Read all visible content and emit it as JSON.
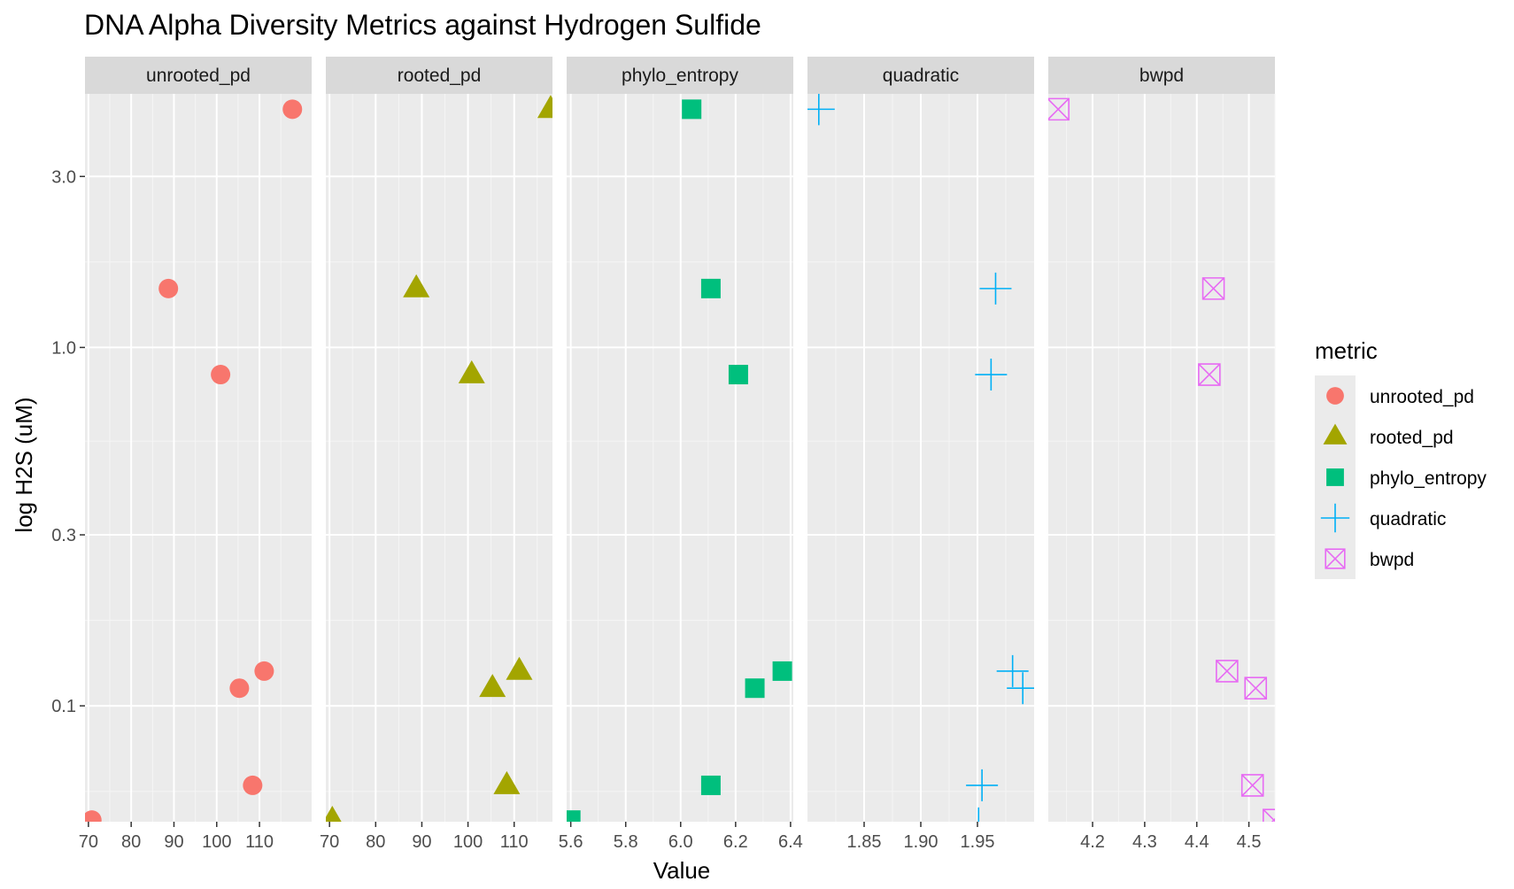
{
  "chart_data": {
    "type": "scatter",
    "title": "DNA Alpha Diversity Metrics against Hydrogen Sulfide",
    "xlabel": "Value",
    "ylabel": "log H2S (uM)",
    "y_scale": "log10",
    "ylim": [
      0.0475,
      5.1
    ],
    "y_ticks": [
      {
        "value": 0.1,
        "label": "0.1"
      },
      {
        "value": 0.3,
        "label": "0.3"
      },
      {
        "value": 1.0,
        "label": "1.0"
      },
      {
        "value": 3.0,
        "label": "3.0"
      }
    ],
    "grid": true,
    "facets": "columns, free x scales",
    "legend": {
      "title": "metric",
      "placement": "right",
      "entries": [
        {
          "label": "unrooted_pd",
          "shape": "circle",
          "color": "#F8766D"
        },
        {
          "label": "rooted_pd",
          "shape": "triangle",
          "color": "#A3A500"
        },
        {
          "label": "phylo_entropy",
          "shape": "square",
          "color": "#00BF7D"
        },
        {
          "label": "quadratic",
          "shape": "plus",
          "color": "#00B0F6"
        },
        {
          "label": "bwpd",
          "shape": "boxed-x",
          "color": "#E76BF3"
        }
      ]
    },
    "panels": [
      {
        "name": "unrooted_pd",
        "shape": "circle",
        "color": "#F8766D",
        "xlim": [
          69.2,
          122.2
        ],
        "x_ticks": [
          70,
          80,
          90,
          100,
          110
        ],
        "x_tick_labels": [
          "70",
          "80",
          "90",
          "100",
          "110"
        ],
        "points": [
          {
            "x": 70.8,
            "y": 0.048
          },
          {
            "x": 88.7,
            "y": 1.46
          },
          {
            "x": 100.9,
            "y": 0.84
          },
          {
            "x": 105.3,
            "y": 0.112
          },
          {
            "x": 108.4,
            "y": 0.06
          },
          {
            "x": 111.1,
            "y": 0.125
          },
          {
            "x": 117.7,
            "y": 4.62
          }
        ]
      },
      {
        "name": "rooted_pd",
        "shape": "triangle",
        "color": "#A3A500",
        "xlim": [
          69.2,
          118.3
        ],
        "x_ticks": [
          70,
          80,
          90,
          100,
          110
        ],
        "x_tick_labels": [
          "70",
          "80",
          "90",
          "100",
          "110"
        ],
        "points": [
          {
            "x": 70.6,
            "y": 0.048
          },
          {
            "x": 88.8,
            "y": 1.46
          },
          {
            "x": 100.8,
            "y": 0.84
          },
          {
            "x": 105.3,
            "y": 0.112
          },
          {
            "x": 108.4,
            "y": 0.06
          },
          {
            "x": 111.1,
            "y": 0.125
          },
          {
            "x": 117.9,
            "y": 4.62
          }
        ]
      },
      {
        "name": "phylo_entropy",
        "shape": "square",
        "color": "#00BF7D",
        "xlim": [
          5.585,
          6.41
        ],
        "x_ticks": [
          5.6,
          5.8,
          6.0,
          6.2,
          6.4
        ],
        "x_tick_labels": [
          "5.6",
          "5.8",
          "6.0",
          "6.2",
          "6.4"
        ],
        "points": [
          {
            "x": 5.6,
            "y": 0.048
          },
          {
            "x": 6.04,
            "y": 4.62
          },
          {
            "x": 6.11,
            "y": 1.46
          },
          {
            "x": 6.21,
            "y": 0.84
          },
          {
            "x": 6.27,
            "y": 0.112
          },
          {
            "x": 6.11,
            "y": 0.06
          },
          {
            "x": 6.37,
            "y": 0.125
          }
        ]
      },
      {
        "name": "quadratic",
        "shape": "plus",
        "color": "#00B0F6",
        "xlim": [
          1.8,
          2.0
        ],
        "x_ticks": [
          1.85,
          1.9,
          1.95
        ],
        "x_tick_labels": [
          "1.85",
          "1.90",
          "1.95"
        ],
        "points": [
          {
            "x": 1.81,
            "y": 4.62
          },
          {
            "x": 1.966,
            "y": 1.46
          },
          {
            "x": 1.962,
            "y": 0.84
          },
          {
            "x": 1.981,
            "y": 0.125
          },
          {
            "x": 1.99,
            "y": 0.112
          },
          {
            "x": 1.954,
            "y": 0.06
          },
          {
            "x": 1.951,
            "y": 0.047
          }
        ]
      },
      {
        "name": "bwpd",
        "shape": "boxed-x",
        "color": "#E76BF3",
        "xlim": [
          4.115,
          4.55
        ],
        "x_ticks": [
          4.2,
          4.3,
          4.4,
          4.5
        ],
        "x_tick_labels": [
          "4.2",
          "4.3",
          "4.4",
          "4.5"
        ],
        "points": [
          {
            "x": 4.134,
            "y": 4.62
          },
          {
            "x": 4.432,
            "y": 1.46
          },
          {
            "x": 4.424,
            "y": 0.84
          },
          {
            "x": 4.458,
            "y": 0.125
          },
          {
            "x": 4.513,
            "y": 0.112
          },
          {
            "x": 4.507,
            "y": 0.06
          },
          {
            "x": 4.548,
            "y": 0.048
          }
        ]
      }
    ]
  }
}
